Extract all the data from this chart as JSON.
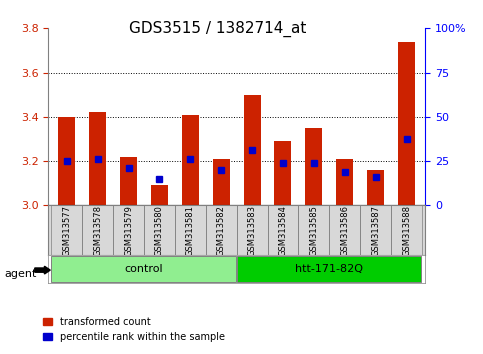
{
  "title": "GDS3515 / 1382714_at",
  "samples": [
    "GSM313577",
    "GSM313578",
    "GSM313579",
    "GSM313580",
    "GSM313581",
    "GSM313582",
    "GSM313583",
    "GSM313584",
    "GSM313585",
    "GSM313586",
    "GSM313587",
    "GSM313588"
  ],
  "bar_heights": [
    3.4,
    3.42,
    3.22,
    3.09,
    3.41,
    3.21,
    3.5,
    3.29,
    3.35,
    3.21,
    3.16,
    3.74
  ],
  "percentile_values": [
    3.2,
    3.21,
    3.17,
    3.12,
    3.21,
    3.16,
    3.25,
    3.19,
    3.19,
    3.15,
    3.13,
    3.3
  ],
  "groups": [
    {
      "label": "control",
      "start": 0,
      "end": 6,
      "color": "#90ee90"
    },
    {
      "label": "htt-171-82Q",
      "start": 6,
      "end": 12,
      "color": "#00cc00"
    }
  ],
  "ymin": 3.0,
  "ymax": 3.8,
  "yticks": [
    3.0,
    3.2,
    3.4,
    3.6,
    3.8
  ],
  "right_yticks": [
    0,
    25,
    50,
    75,
    100
  ],
  "right_ytick_labels": [
    "0",
    "25",
    "50",
    "75",
    "100%"
  ],
  "bar_color": "#cc2200",
  "marker_color": "#0000cc",
  "grid_color": "#000000",
  "bg_plot": "#f0f0f0",
  "tick_label_area_bg": "#d0d0d0",
  "agent_label": "agent",
  "legend_entries": [
    "transformed count",
    "percentile rank within the sample"
  ]
}
